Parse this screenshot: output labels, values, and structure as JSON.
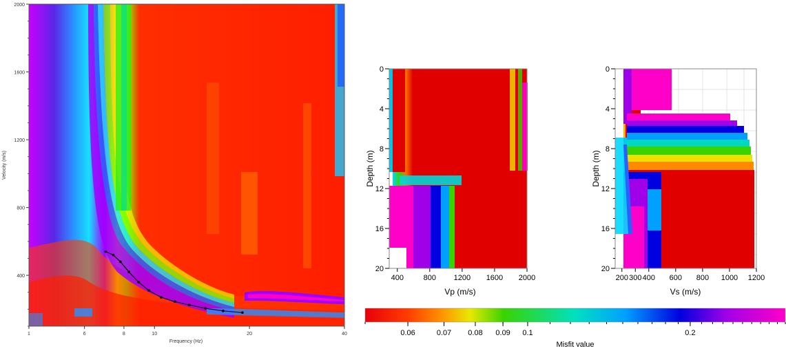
{
  "dispersion_panel": {
    "xlabel": "Frequency (Hz)",
    "ylabel": "Velocity (m/s)",
    "x_ticks": [
      "1",
      "6",
      "8",
      "10",
      "20",
      "40"
    ],
    "y_ticks": [
      "2000",
      "1600",
      "1200",
      "800",
      "400"
    ]
  },
  "vp_panel": {
    "xlabel": "Vp (m/s)",
    "ylabel": "Depth (m)",
    "x_ticks": [
      "400",
      "800",
      "1200",
      "1600",
      "2000"
    ],
    "y_ticks": [
      "0",
      "4",
      "8",
      "12",
      "16",
      "20"
    ]
  },
  "vs_panel": {
    "xlabel": "Vs (m/s)",
    "ylabel": "Depth (m)",
    "x_ticks": [
      "200",
      "300",
      "400",
      "600",
      "800",
      "1000",
      "1200"
    ],
    "y_ticks": [
      "0",
      "4",
      "8",
      "12",
      "16",
      "20"
    ]
  },
  "colorbar": {
    "label": "Misfit value",
    "ticks": [
      "0.06",
      "0.07",
      "0.08",
      "0.09",
      "0.1",
      "0.2"
    ],
    "colors": [
      "#e8000a",
      "#ff6a00",
      "#e8e800",
      "#39d400",
      "#00d8d8",
      "#0000e0",
      "#a000e8",
      "#ff00c8"
    ]
  },
  "chart_data": [
    {
      "type": "heatmap",
      "xlabel": "Frequency (Hz)",
      "ylabel": "Velocity (m/s)",
      "xlim": [
        4,
        40
      ],
      "ylim": [
        100,
        2000
      ],
      "x_scale": "log",
      "picked_curve": {
        "x": [
          7,
          7.4,
          7.8,
          8.3,
          8.9,
          9.6,
          10.5,
          11.6,
          12.9,
          14.5,
          16.5,
          19
        ],
        "y": [
          540,
          520,
          480,
          420,
          360,
          310,
          270,
          245,
          225,
          205,
          190,
          180
        ]
      }
    },
    {
      "type": "line",
      "xlabel": "Vp (m/s)",
      "ylabel": "Depth (m)",
      "xlim": [
        300,
        2000
      ],
      "ylim": [
        20,
        0
      ],
      "series": [
        {
          "x": [
            310,
            310,
            450,
            450
          ],
          "y": [
            0,
            10.5,
            10.5,
            20
          ]
        },
        {
          "x": [
            2000,
            2000,
            1100,
            1100
          ],
          "y": [
            0,
            10.5,
            10.5,
            20
          ]
        }
      ]
    },
    {
      "type": "line",
      "xlabel": "Vs (m/s)",
      "ylabel": "Depth (m)",
      "xlim": [
        150,
        1200
      ],
      "ylim": [
        20,
        0
      ],
      "series": [
        {
          "x": [
            165,
            165,
            240,
            240
          ],
          "y": [
            0,
            7,
            19,
            20
          ]
        },
        {
          "x": [
            400,
            600,
            1150,
            1150
          ],
          "y": [
            0,
            4.5,
            11,
            20
          ]
        }
      ]
    }
  ]
}
